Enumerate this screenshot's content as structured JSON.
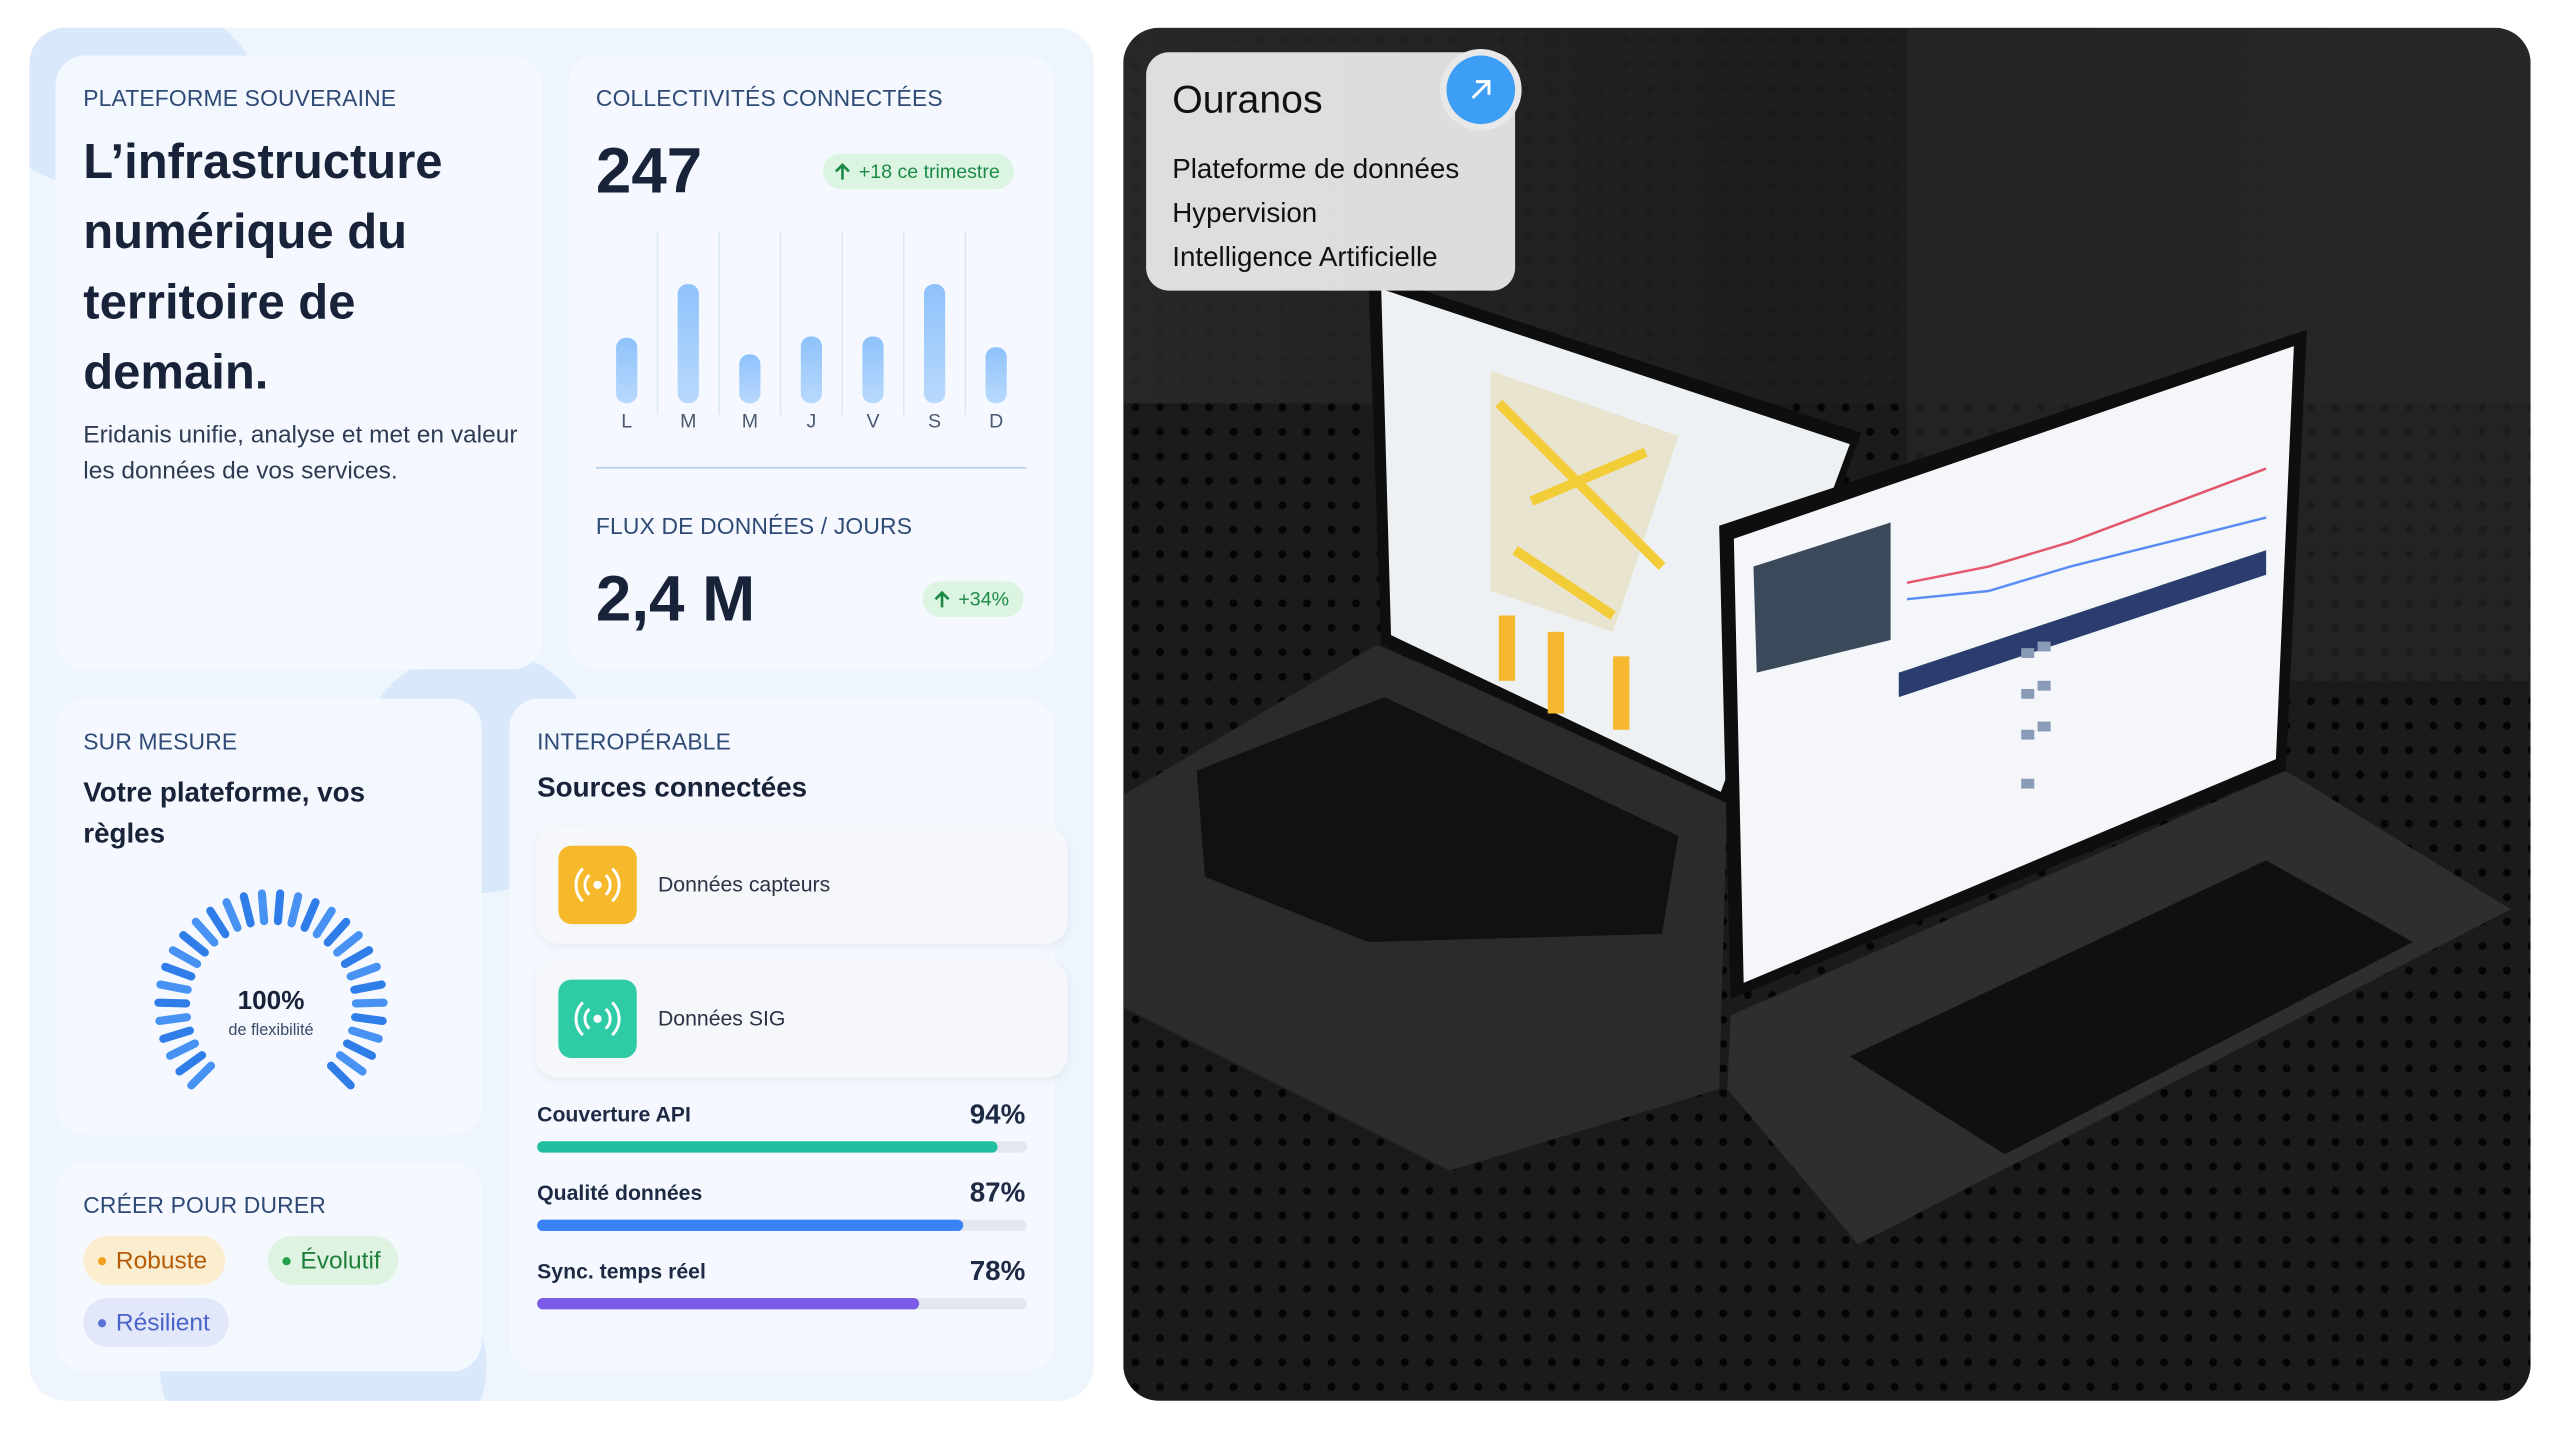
{
  "left": {
    "sovereign": {
      "eyebrow": "PLATEFORME SOUVERAINE",
      "title": "L’infrastructure numérique du territoire de demain.",
      "text": "Eridanis unifie, analyse et met en valeur les données de vos services."
    },
    "collectivites": {
      "eyebrow": "COLLECTIVITÉS CONNECTÉES",
      "value": "247",
      "badge": "+18 ce trimestre",
      "days": [
        "L",
        "M",
        "M",
        "J",
        "V",
        "S",
        "D"
      ],
      "bars": [
        55,
        100,
        41,
        56,
        56,
        100,
        47
      ]
    },
    "flux": {
      "eyebrow": "FLUX DE DONNÉES / JOURS",
      "value": "2,4 M",
      "badge": "+34%"
    },
    "mesure": {
      "eyebrow": "SUR MESURE",
      "title": "Votre plateforme, vos règles",
      "gauge": {
        "value": 100,
        "label": "100%",
        "caption": "de flexibilité"
      }
    },
    "interop": {
      "eyebrow": "INTEROPÉRABLE",
      "title": "Sources connectées",
      "sources": [
        "Données capteurs",
        "Données SIG"
      ],
      "metrics": [
        {
          "name": "Couverture API",
          "value": 94,
          "label": "94%",
          "color": "#20bfa0"
        },
        {
          "name": "Qualité données",
          "value": 87,
          "label": "87%",
          "color": "#3b82f6"
        },
        {
          "name": "Sync. temps réel",
          "value": 78,
          "label": "78%",
          "color": "#7b5ce8"
        }
      ]
    },
    "durer": {
      "eyebrow": "CRÉER POUR DURER",
      "tags": [
        "Robuste",
        "Évolutif",
        "Résilient"
      ]
    }
  },
  "right": {
    "card": {
      "title": "Ouranos",
      "items": [
        "Plateforme de données",
        "Hypervision",
        "Intelligence Artificielle"
      ]
    }
  }
}
